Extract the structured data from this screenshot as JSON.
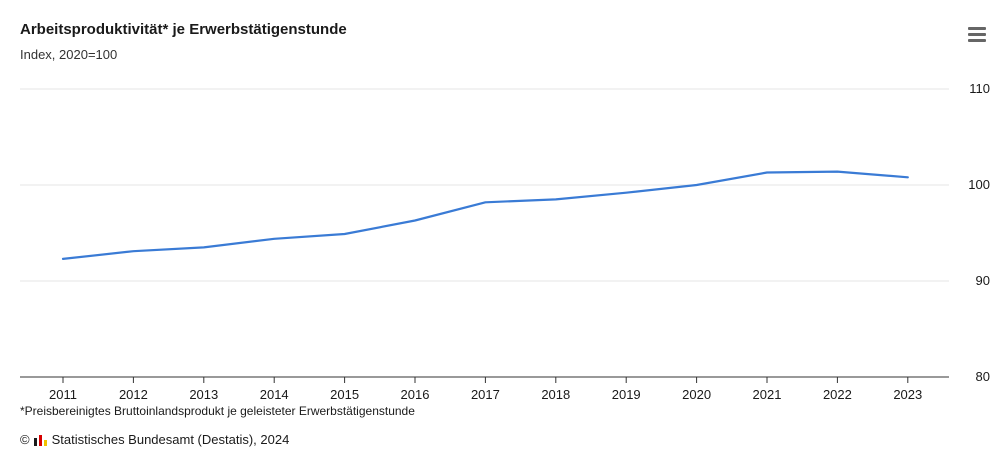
{
  "header": {
    "title": "Arbeitsproduktivität* je Erwerbstätigenstunde",
    "subtitle": "Index, 2020=100",
    "menu_icon": "hamburger-menu-icon"
  },
  "footer": {
    "footnote": "*Preisbereinigtes Bruttoinlandsprodukt je geleisteter Erwerbstätigenstunde",
    "credit_symbol": "©",
    "credit_text": "Statistisches Bundesamt (Destatis), 2024",
    "logo_icon": "destatis-logo-icon"
  },
  "colors": {
    "line": "#3a7bd5",
    "grid": "#e6e6e6",
    "axis": "#333333"
  },
  "chart_data": {
    "type": "line",
    "title": "Arbeitsproduktivität* je Erwerbstätigenstunde",
    "subtitle": "Index, 2020=100",
    "xlabel": "",
    "ylabel": "",
    "x": [
      "2011",
      "2012",
      "2013",
      "2014",
      "2015",
      "2016",
      "2017",
      "2018",
      "2019",
      "2020",
      "2021",
      "2022",
      "2023"
    ],
    "series": [
      {
        "values": [
          92.3,
          93.1,
          93.5,
          94.4,
          94.9,
          96.3,
          98.2,
          98.5,
          99.2,
          100.0,
          101.3,
          101.4,
          100.8
        ]
      }
    ],
    "ylim": [
      80,
      110
    ],
    "yticks": [
      80,
      90,
      100,
      110
    ],
    "y_axis_side": "right",
    "grid": true
  }
}
